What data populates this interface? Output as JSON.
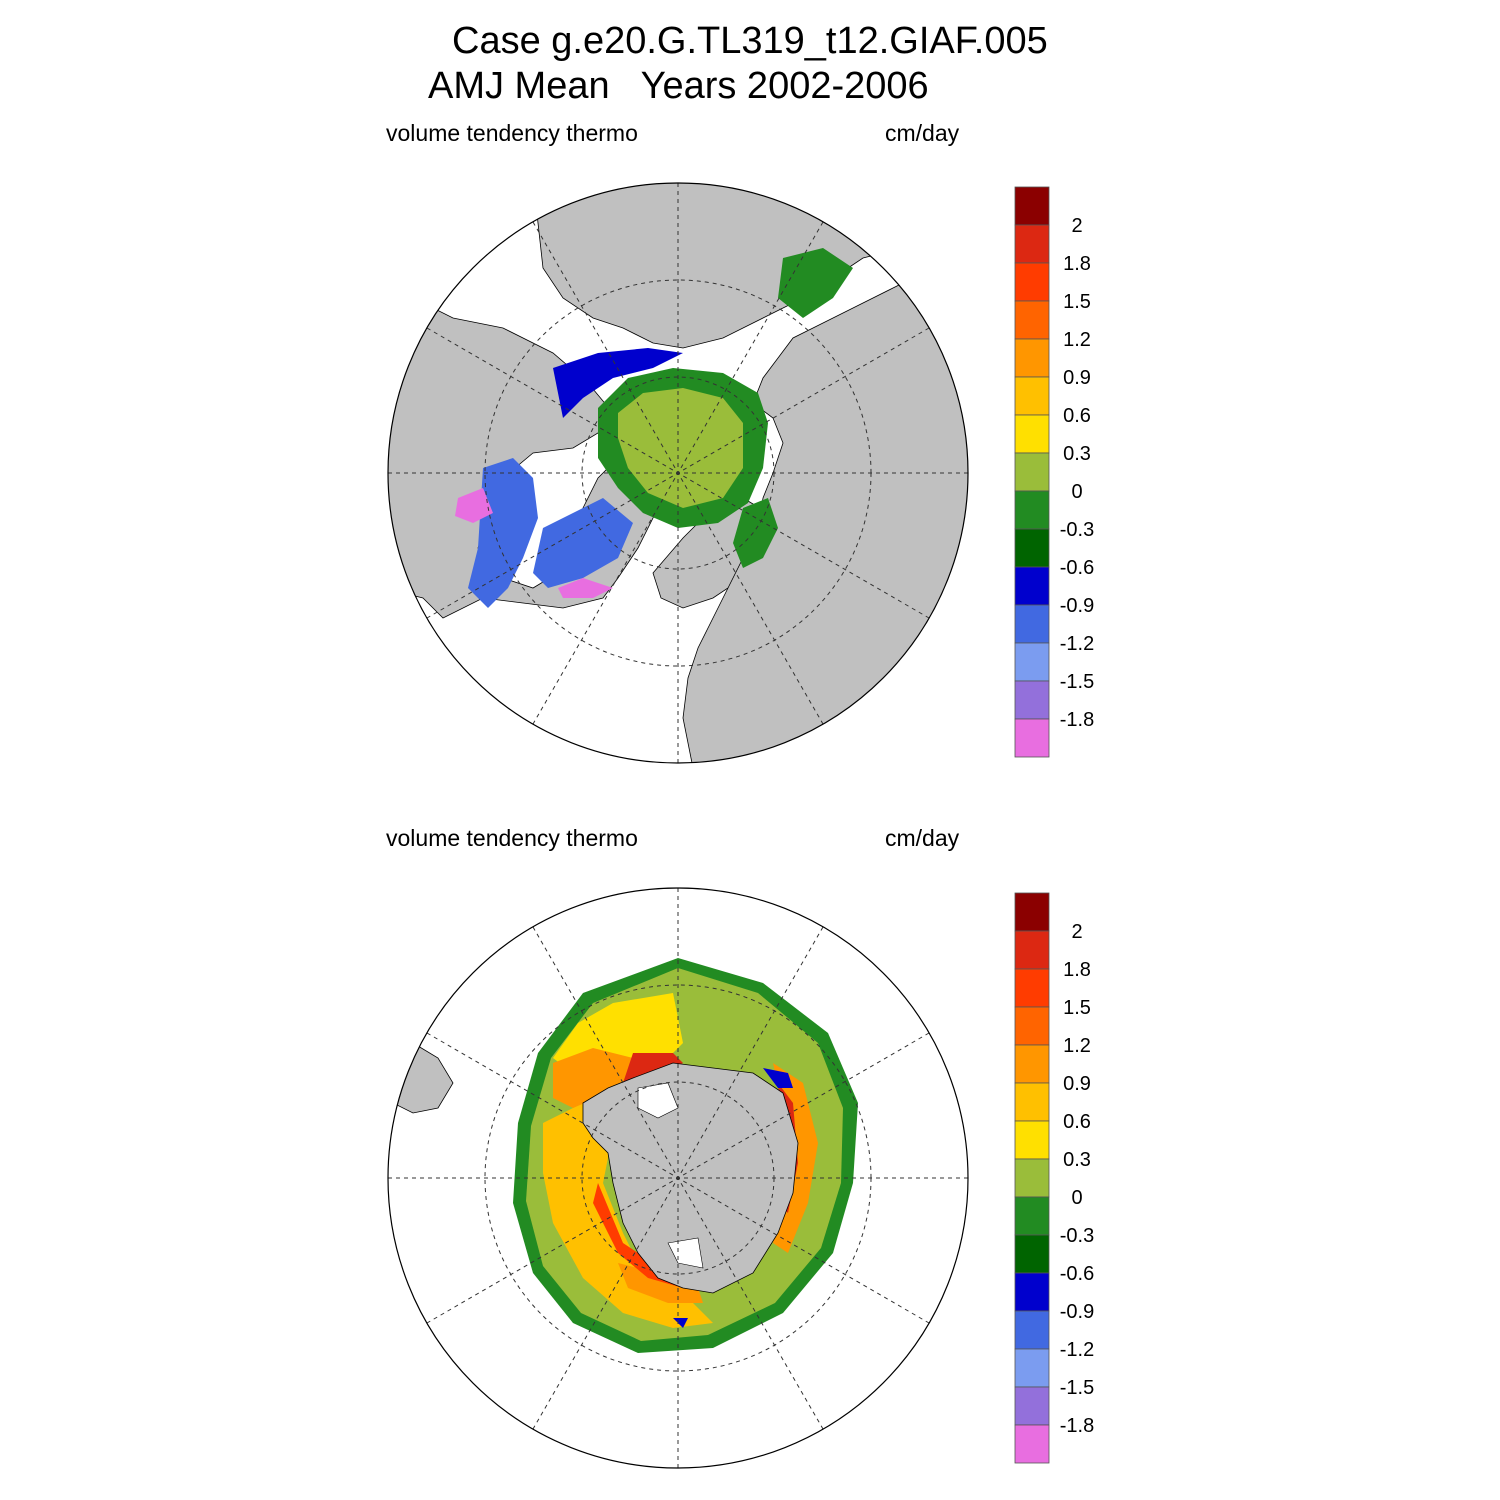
{
  "figure": {
    "title_line1": "Case g.e20.G.TL319_t12.GIAF.005",
    "title_line2": "AMJ Mean   Years 2002-2006"
  },
  "panels": [
    {
      "id": "north",
      "hemisphere": "Northern",
      "left_label": "volume tendency thermo",
      "right_label": "cm/day"
    },
    {
      "id": "south",
      "hemisphere": "Southern",
      "left_label": "volume tendency thermo",
      "right_label": "cm/day"
    }
  ],
  "colorbar": {
    "colors_top_to_bottom": [
      "#8b0000",
      "#dc2812",
      "#ff3c00",
      "#ff6400",
      "#ff9600",
      "#ffc000",
      "#ffe000",
      "#9abd3a",
      "#228b22",
      "#006400",
      "#0000cd",
      "#4169e1",
      "#7b9cf0",
      "#9370db",
      "#e86ee0"
    ],
    "labels_top_to_bottom": [
      "2",
      "1.8",
      "1.5",
      "1.2",
      "0.9",
      "0.6",
      "0.3",
      "0",
      "-0.3",
      "-0.6",
      "-0.9",
      "-1.2",
      "-1.5",
      "-1.8"
    ]
  },
  "colors": {
    "land": "#c0c0c0",
    "grid": "#333333",
    "frame": "#000000"
  }
}
